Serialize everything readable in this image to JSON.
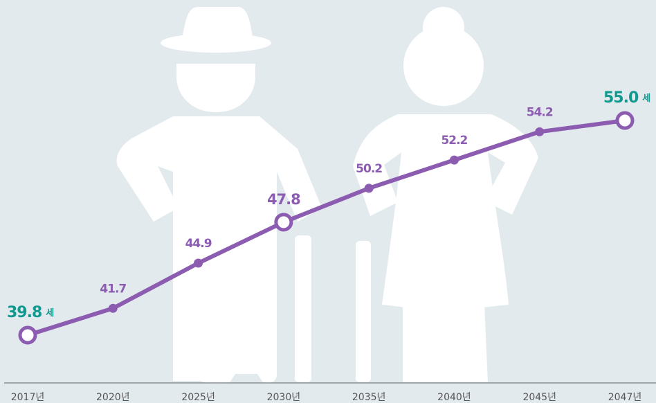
{
  "chart_data": {
    "type": "line",
    "categories": [
      "2017년",
      "2020년",
      "2025년",
      "2030년",
      "2035년",
      "2040년",
      "2045년",
      "2047년"
    ],
    "values": [
      39.8,
      41.7,
      44.9,
      47.8,
      50.2,
      52.2,
      54.2,
      55.0
    ],
    "value_labels": [
      "39.8",
      "41.7",
      "44.9",
      "47.8",
      "50.2",
      "52.2",
      "54.2",
      "55.0"
    ],
    "unit": "세",
    "color": "#8b5cb0",
    "endpoint_color": "#12998f",
    "highlight_points": [
      0,
      3,
      7
    ]
  }
}
